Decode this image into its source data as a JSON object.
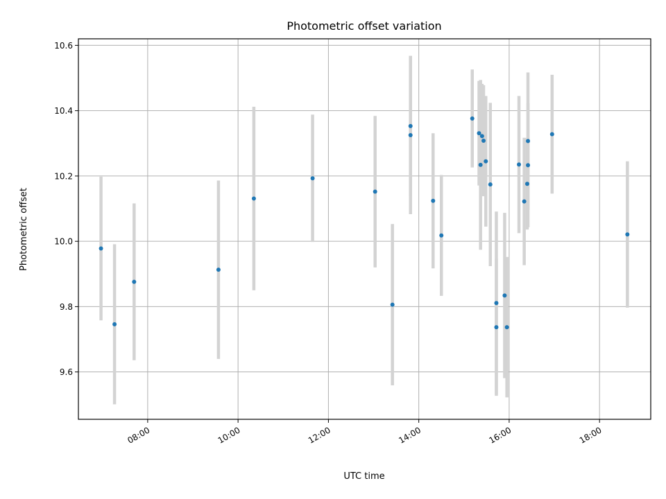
{
  "chart_data": {
    "type": "scatter",
    "title": "Photometric offset variation",
    "xlabel": "UTC time",
    "ylabel": "Photometric offset",
    "xlim": [
      "06:28",
      "19:08"
    ],
    "ylim": [
      9.455,
      10.62
    ],
    "grid": true,
    "x_ticks": [
      "08:00",
      "10:00",
      "12:00",
      "14:00",
      "16:00",
      "18:00"
    ],
    "y_ticks": [
      "9.6",
      "9.8",
      "10.0",
      "10.2",
      "10.4",
      "10.6"
    ],
    "colors": {
      "points": "#1f77b4",
      "errorbars": "#d3d3d3",
      "grid": "#b0b0b0"
    },
    "series": [
      {
        "points": [
          {
            "x": "06:58",
            "y": 9.978,
            "err": 0.22
          },
          {
            "x": "07:16",
            "y": 9.746,
            "err": 0.245
          },
          {
            "x": "07:42",
            "y": 9.876,
            "err": 0.24
          },
          {
            "x": "09:34",
            "y": 9.913,
            "err": 0.273
          },
          {
            "x": "10:21",
            "y": 10.131,
            "err": 0.281
          },
          {
            "x": "11:39",
            "y": 10.193,
            "err": 0.195
          },
          {
            "x": "13:02",
            "y": 10.152,
            "err": 0.232
          },
          {
            "x": "13:25",
            "y": 9.806,
            "err": 0.247
          },
          {
            "x": "13:49",
            "y": 10.353,
            "err": 0.215
          },
          {
            "x": "13:49",
            "y": 10.325,
            "err": 0.242
          },
          {
            "x": "14:19",
            "y": 10.124,
            "err": 0.207
          },
          {
            "x": "14:30",
            "y": 10.018,
            "err": 0.185
          },
          {
            "x": "15:11",
            "y": 10.376,
            "err": 0.15
          },
          {
            "x": "15:20",
            "y": 10.331,
            "err": 0.16
          },
          {
            "x": "15:22",
            "y": 10.234,
            "err": 0.26
          },
          {
            "x": "15:24",
            "y": 10.322,
            "err": 0.16
          },
          {
            "x": "15:26",
            "y": 10.308,
            "err": 0.17
          },
          {
            "x": "15:29",
            "y": 10.245,
            "err": 0.2
          },
          {
            "x": "15:35",
            "y": 10.174,
            "err": 0.25
          },
          {
            "x": "15:43",
            "y": 9.811,
            "err": 0.28
          },
          {
            "x": "15:43",
            "y": 9.737,
            "err": 0.21
          },
          {
            "x": "15:54",
            "y": 9.834,
            "err": 0.253
          },
          {
            "x": "15:57",
            "y": 9.737,
            "err": 0.215
          },
          {
            "x": "16:13",
            "y": 10.235,
            "err": 0.21
          },
          {
            "x": "16:20",
            "y": 10.122,
            "err": 0.195
          },
          {
            "x": "16:24",
            "y": 10.176,
            "err": 0.14
          },
          {
            "x": "16:25",
            "y": 10.307,
            "err": 0.21
          },
          {
            "x": "16:25",
            "y": 10.233,
            "err": 0.19
          },
          {
            "x": "16:57",
            "y": 10.328,
            "err": 0.182
          },
          {
            "x": "18:37",
            "y": 10.021,
            "err": 0.224
          }
        ]
      }
    ]
  }
}
